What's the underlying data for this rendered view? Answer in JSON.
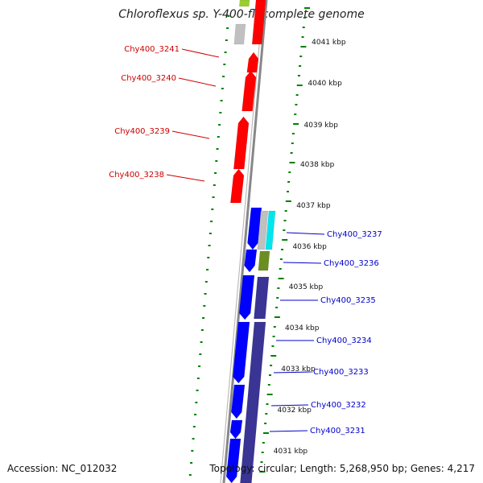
{
  "title": "Chloroflexus sp. Y-400-fl, complete genome",
  "footer": {
    "accession": "Accession: NC_012032",
    "summary": "Topology: circular; Length: 5,268,950 bp; Genes: 4,217"
  },
  "colors": {
    "forward_gene": "#ff0000",
    "reverse_gene": "#0000ff",
    "feature_purple": "#3a3494",
    "feature_cyan": "#00e5ee",
    "feature_olive": "#6b8e23",
    "feature_grey": "#c0c0c0",
    "feature_green": "#9acd32",
    "backbone": "#888888",
    "ticks": "#008000",
    "red_labels": "#cc0000",
    "blue_labels": "#0000cc"
  },
  "scale_labels": [
    {
      "kbp": 4041,
      "label": "4041 kbp"
    },
    {
      "kbp": 4040,
      "label": "4040 kbp"
    },
    {
      "kbp": 4039,
      "label": "4039 kbp"
    },
    {
      "kbp": 4038,
      "label": "4038 kbp"
    },
    {
      "kbp": 4037,
      "label": "4037 kbp"
    },
    {
      "kbp": 4036,
      "label": "4036 kbp"
    },
    {
      "kbp": 4035,
      "label": "4035 kbp"
    },
    {
      "kbp": 4034,
      "label": "4034 kbp"
    },
    {
      "kbp": 4033,
      "label": "4033 kbp"
    },
    {
      "kbp": 4032,
      "label": "4032 kbp"
    },
    {
      "kbp": 4031,
      "label": "4031 kbp"
    }
  ],
  "genes": [
    {
      "label": "Chy400_3241",
      "strand": "forward"
    },
    {
      "label": "Chy400_3240",
      "strand": "forward"
    },
    {
      "label": "Chy400_3239",
      "strand": "forward"
    },
    {
      "label": "Chy400_3238",
      "strand": "forward"
    },
    {
      "label": "Chy400_3237",
      "strand": "reverse"
    },
    {
      "label": "Chy400_3236",
      "strand": "reverse"
    },
    {
      "label": "Chy400_3235",
      "strand": "reverse"
    },
    {
      "label": "Chy400_3234",
      "strand": "reverse"
    },
    {
      "label": "Chy400_3233",
      "strand": "reverse"
    },
    {
      "label": "Chy400_3232",
      "strand": "reverse"
    },
    {
      "label": "Chy400_3231",
      "strand": "reverse"
    }
  ]
}
